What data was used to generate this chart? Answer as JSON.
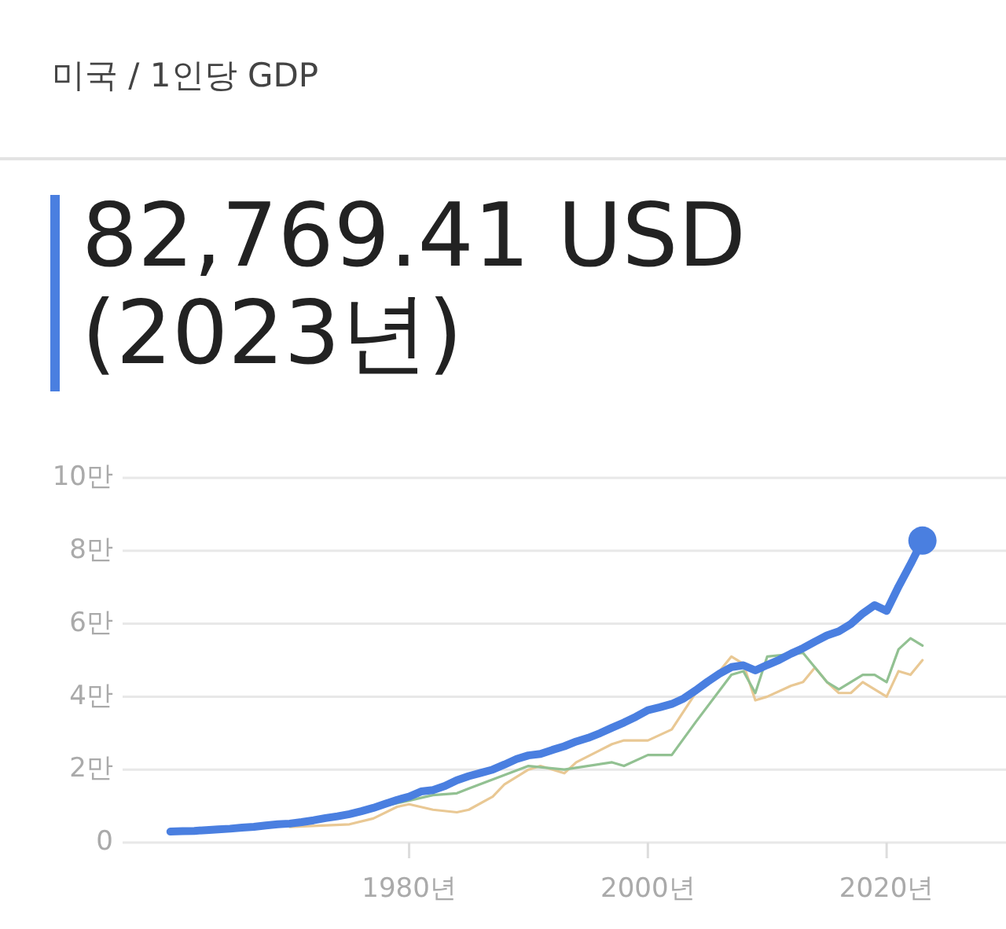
{
  "chart_data": {
    "type": "line",
    "title": "미국 / 1인당 GDP",
    "subtitle": "82,769.41 USD (2023년)",
    "xlim": [
      1956,
      2030
    ],
    "xticks": [
      {
        "value": 1980,
        "label": "1980년"
      },
      {
        "value": 2000,
        "label": "2000년"
      },
      {
        "value": 2020,
        "label": "2020년"
      }
    ],
    "ylim": [
      0,
      10
    ],
    "yticks": [
      0,
      {
        "value": 2,
        "label": "2만"
      },
      {
        "value": 4,
        "label": "4만"
      },
      {
        "value": 6,
        "label": "6만"
      },
      {
        "value": 8,
        "label": "8만"
      },
      {
        "value": 10,
        "label": "10만"
      }
    ],
    "grid": "y",
    "series": [
      {
        "color": "#e9c894",
        "x": [
          1970,
          1975,
          1977,
          1979,
          1980,
          1982,
          1984,
          1985,
          1987,
          1988,
          1990,
          1991,
          1993,
          1994,
          1997,
          1998,
          2000,
          2002,
          2004,
          2006,
          2007,
          2008,
          2009,
          2010,
          2012,
          2013,
          2014,
          2015,
          2016,
          2017,
          2018,
          2020,
          2021,
          2022,
          2023
        ],
        "values": [
          0.43,
          0.5,
          0.66,
          0.98,
          1.05,
          0.9,
          0.83,
          0.9,
          1.26,
          1.6,
          2.0,
          2.1,
          1.9,
          2.2,
          2.7,
          2.8,
          2.8,
          3.1,
          4.1,
          4.7,
          5.1,
          4.9,
          3.9,
          4.0,
          4.3,
          4.4,
          4.8,
          4.4,
          4.1,
          4.1,
          4.4,
          4.0,
          4.7,
          4.6,
          5.0
        ]
      },
      {
        "color": "#92c192",
        "x": [
          1970,
          1980,
          1982,
          1984,
          1985,
          1990,
          1993,
          1997,
          1998,
          2000,
          2002,
          2004,
          2007,
          2008,
          2009,
          2010,
          2013,
          2015,
          2016,
          2018,
          2019,
          2020,
          2021,
          2022,
          2023
        ],
        "values": [
          0.45,
          1.15,
          1.3,
          1.35,
          1.48,
          2.1,
          2.0,
          2.2,
          2.1,
          2.4,
          2.4,
          3.3,
          4.6,
          4.7,
          4.1,
          5.1,
          5.2,
          4.4,
          4.2,
          4.6,
          4.6,
          4.4,
          5.3,
          5.6,
          5.4
        ]
      },
      {
        "color": "#4a7fe0",
        "x": [
          1960,
          1961,
          1962,
          1963,
          1964,
          1965,
          1966,
          1967,
          1968,
          1969,
          1970,
          1971,
          1972,
          1973,
          1974,
          1975,
          1976,
          1977,
          1978,
          1979,
          1980,
          1981,
          1982,
          1983,
          1984,
          1985,
          1986,
          1987,
          1988,
          1989,
          1990,
          1991,
          1992,
          1993,
          1994,
          1995,
          1996,
          1997,
          1998,
          1999,
          2000,
          2001,
          2002,
          2003,
          2004,
          2005,
          2006,
          2007,
          2008,
          2009,
          2010,
          2011,
          2012,
          2013,
          2014,
          2015,
          2016,
          2017,
          2018,
          2019,
          2020,
          2021,
          2022,
          2023
        ],
        "values": [
          0.3,
          0.31,
          0.32,
          0.34,
          0.36,
          0.38,
          0.41,
          0.43,
          0.47,
          0.5,
          0.52,
          0.56,
          0.61,
          0.67,
          0.72,
          0.78,
          0.86,
          0.95,
          1.06,
          1.17,
          1.26,
          1.4,
          1.44,
          1.55,
          1.71,
          1.82,
          1.91,
          2.0,
          2.14,
          2.29,
          2.39,
          2.43,
          2.54,
          2.64,
          2.77,
          2.87,
          3.0,
          3.15,
          3.29,
          3.45,
          3.63,
          3.71,
          3.8,
          3.95,
          4.17,
          4.41,
          4.63,
          4.81,
          4.86,
          4.72,
          4.87,
          5.01,
          5.18,
          5.33,
          5.51,
          5.68,
          5.79,
          5.99,
          6.28,
          6.51,
          6.35,
          7.02,
          7.63,
          8.28
        ]
      },
      {
        "type": "scatter",
        "marker": "circle",
        "color": "#4a7fe0",
        "x": [
          2023
        ],
        "values": [
          8.28
        ]
      }
    ]
  }
}
